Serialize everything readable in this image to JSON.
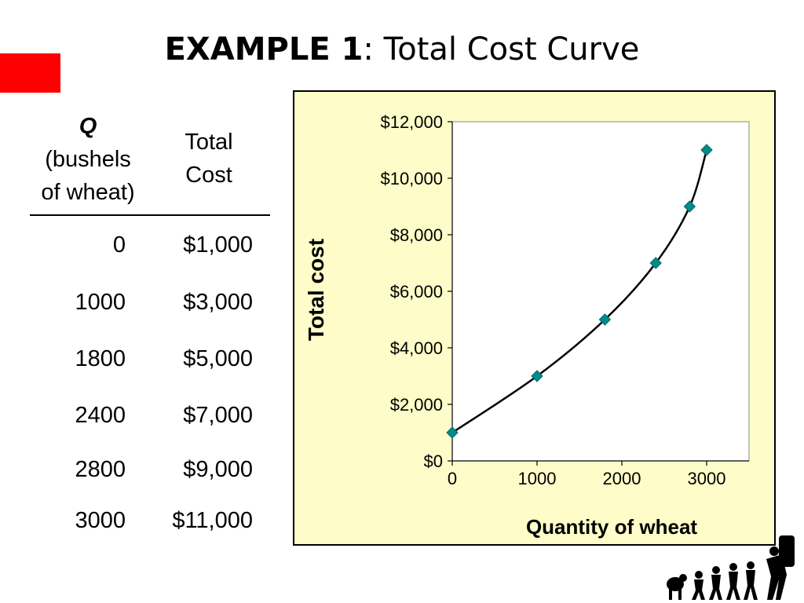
{
  "slide": {
    "title_bold": "EXAMPLE 1",
    "title_rest": ":  Total Cost Curve",
    "accent_color": "#ff0000",
    "panel_bg": "#fefdc9"
  },
  "table": {
    "col_q_label": "Q",
    "col_q_sub1": "(bushels",
    "col_q_sub2": "of wheat)",
    "col_cost_line1": "Total",
    "col_cost_line2": "Cost",
    "rows": [
      {
        "q": "0",
        "cost": "$1,000"
      },
      {
        "q": "1000",
        "cost": "$3,000"
      },
      {
        "q": "1800",
        "cost": "$5,000"
      },
      {
        "q": "2400",
        "cost": "$7,000"
      },
      {
        "q": "2800",
        "cost": "$9,000"
      },
      {
        "q": "3000",
        "cost": "$11,000"
      }
    ]
  },
  "chart_data": {
    "type": "line",
    "title": "",
    "xlabel": "Quantity of wheat",
    "ylabel": "Total cost",
    "x": [
      0,
      1000,
      1800,
      2400,
      2800,
      3000
    ],
    "series": [
      {
        "values": [
          1000,
          3000,
          5000,
          7000,
          9000,
          11000
        ]
      }
    ],
    "xlim": [
      0,
      3500
    ],
    "ylim": [
      0,
      12000
    ],
    "x_ticks": [
      0,
      1000,
      2000,
      3000
    ],
    "x_tick_labels": [
      "0",
      "1000",
      "2000",
      "3000"
    ],
    "y_ticks": [
      0,
      2000,
      4000,
      6000,
      8000,
      10000,
      12000
    ],
    "y_tick_labels": [
      "$0",
      "$2,000",
      "$4,000",
      "$6,000",
      "$8,000",
      "$10,000",
      "$12,000"
    ],
    "grid": false,
    "marker": "diamond",
    "marker_color": "#008b8b",
    "line_color": "#000000"
  }
}
